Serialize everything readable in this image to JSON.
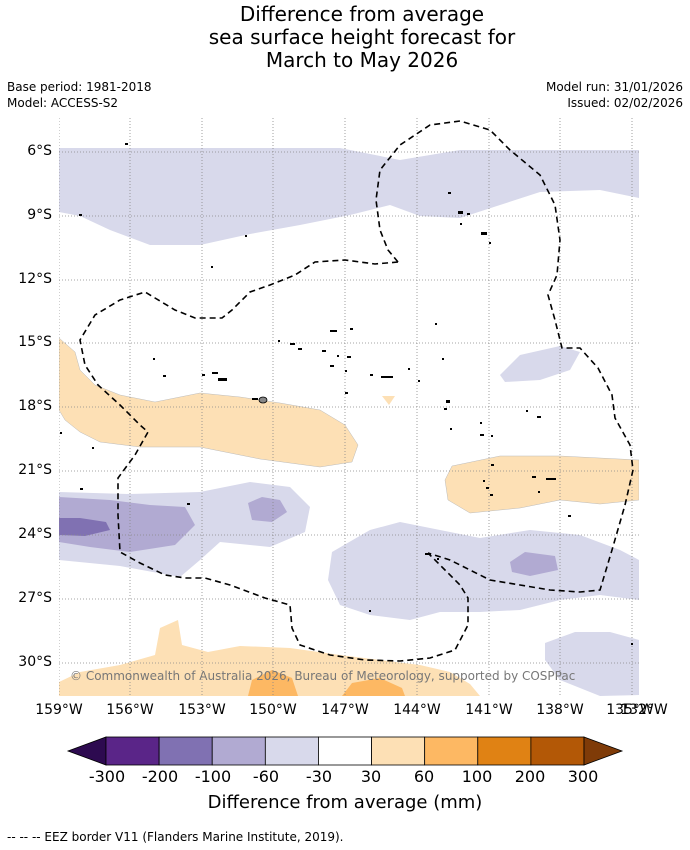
{
  "title": {
    "line1": "Difference from average",
    "line2": "sea surface height forecast for",
    "line3": "March to May 2026"
  },
  "meta": {
    "base_period": "Base period: 1981-2018",
    "model": "Model: ACCESS-S2",
    "model_run": "Model run: 31/01/2026",
    "issued": "Issued: 02/02/2026"
  },
  "axes": {
    "latitudes": [
      "6°S",
      "9°S",
      "12°S",
      "15°S",
      "18°S",
      "21°S",
      "24°S",
      "27°S",
      "30°S"
    ],
    "longitudes": [
      "159°W",
      "156°W",
      "153°W",
      "150°W",
      "147°W",
      "144°W",
      "141°W",
      "138°W",
      "135°W",
      "132°W"
    ]
  },
  "copyright": "© Commonwealth of Australia 2026, Bureau of Meteorology, supported by COSPPac",
  "colorbar": {
    "title": "Difference from average (mm)",
    "ticks": [
      "-300",
      "-200",
      "-100",
      "-60",
      "-30",
      "30",
      "60",
      "100",
      "200",
      "300"
    ],
    "colors": [
      "#2d0a50",
      "#5a2588",
      "#8071b2",
      "#b1aad2",
      "#d8d9eb",
      "#ffffff",
      "#fde0b5",
      "#fdb863",
      "#e08214",
      "#b35806",
      "#7f3b08"
    ]
  },
  "eez_note": "-- -- -- EEZ border V11 (Flanders Marine Institute, 2019)."
}
